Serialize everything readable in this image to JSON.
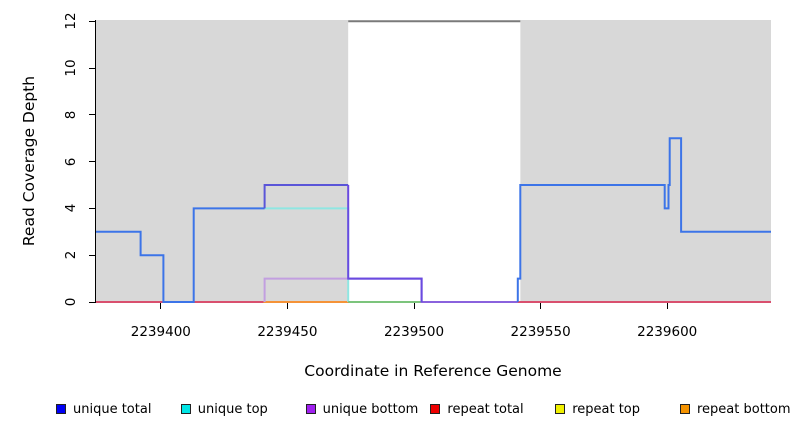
{
  "chart_data": {
    "type": "line",
    "title": "",
    "xlabel": "Coordinate in Reference Genome",
    "ylabel": "Read Coverage Depth",
    "xlim": [
      2239374,
      2239641
    ],
    "ylim": [
      0,
      12
    ],
    "x_ticks": [
      2239400,
      2239450,
      2239500,
      2239550,
      2239600
    ],
    "y_ticks": [
      0,
      2,
      4,
      6,
      8,
      10,
      12
    ],
    "grid": false,
    "legend_position": "bottom",
    "background_color": "#ffffff",
    "shaded_regions": [
      {
        "name": "left-gray-region",
        "from": 2239374,
        "to": 2239474,
        "color": "#d8d8d8"
      },
      {
        "name": "right-gray-region",
        "from": 2239542,
        "to": 2239641,
        "color": "#d8d8d8"
      }
    ],
    "gap_top_line": {
      "from": 2239474,
      "to": 2239542,
      "depth": 12,
      "color": "#7a7a7a"
    },
    "series": [
      {
        "name": "repeat top",
        "segments": [
          {
            "color": "#f0f000",
            "points": [
              [
                2239374,
                0
              ],
              [
                2239641,
                0
              ]
            ]
          }
        ]
      },
      {
        "name": "repeat total",
        "segments": [
          {
            "color": "#d94f6e",
            "points": [
              [
                2239374,
                0
              ],
              [
                2239641,
                0
              ]
            ]
          }
        ]
      },
      {
        "name": "repeat bottom",
        "segments": [
          {
            "color": "#f59338",
            "points": [
              [
                2239440.5,
                0
              ],
              [
                2239474,
                0
              ]
            ]
          }
        ]
      },
      {
        "name": "unique top",
        "segments": [
          {
            "color": "#8fe6e2",
            "points": [
              [
                2239441,
                4
              ],
              [
                2239474,
                4
              ],
              [
                2239474,
                0
              ]
            ]
          },
          {
            "color": "#7cc47c",
            "points": [
              [
                2239474,
                0
              ],
              [
                2239503,
                0
              ]
            ]
          }
        ]
      },
      {
        "name": "unique bottom",
        "segments": [
          {
            "color": "#c29fe0",
            "points": [
              [
                2239441,
                0
              ],
              [
                2239441,
                1
              ],
              [
                2239474,
                1
              ]
            ]
          },
          {
            "color": "#8a62dd",
            "points": [
              [
                2239474,
                1
              ],
              [
                2239503,
                1
              ],
              [
                2239503,
                0
              ],
              [
                2239541,
                0
              ]
            ]
          }
        ]
      },
      {
        "name": "unique total",
        "segments": [
          {
            "color": "#3c74e8",
            "points": [
              [
                2239374,
                3
              ],
              [
                2239392,
                3
              ],
              [
                2239392,
                2
              ],
              [
                2239401,
                2
              ],
              [
                2239401,
                0
              ],
              [
                2239413,
                0
              ],
              [
                2239413,
                4
              ],
              [
                2239441,
                4
              ]
            ]
          },
          {
            "color": "#5a55d8",
            "points": [
              [
                2239441,
                4
              ],
              [
                2239441,
                5
              ],
              [
                2239474,
                5
              ]
            ]
          },
          {
            "color": "#6a4ae0",
            "points": [
              [
                2239474,
                5
              ],
              [
                2239474,
                1
              ],
              [
                2239503,
                1
              ],
              [
                2239503,
                0
              ]
            ]
          },
          {
            "color": "#3c74e8",
            "points": [
              [
                2239541,
                0
              ],
              [
                2239541,
                1
              ],
              [
                2239542,
                1
              ],
              [
                2239542,
                5
              ],
              [
                2239599,
                5
              ],
              [
                2239599,
                4
              ],
              [
                2239600.5,
                4
              ],
              [
                2239600.5,
                5
              ],
              [
                2239601,
                5
              ],
              [
                2239601,
                7
              ],
              [
                2239605.5,
                7
              ],
              [
                2239605.5,
                3
              ],
              [
                2239641,
                3
              ]
            ]
          }
        ]
      }
    ],
    "legend": [
      {
        "label": "unique total",
        "color": "#0000f5"
      },
      {
        "label": "unique top",
        "color": "#00e5e5"
      },
      {
        "label": "unique bottom",
        "color": "#a020f0"
      },
      {
        "label": "repeat total",
        "color": "#ee0000"
      },
      {
        "label": "repeat top",
        "color": "#f0f000"
      },
      {
        "label": "repeat bottom",
        "color": "#f59300"
      }
    ]
  }
}
